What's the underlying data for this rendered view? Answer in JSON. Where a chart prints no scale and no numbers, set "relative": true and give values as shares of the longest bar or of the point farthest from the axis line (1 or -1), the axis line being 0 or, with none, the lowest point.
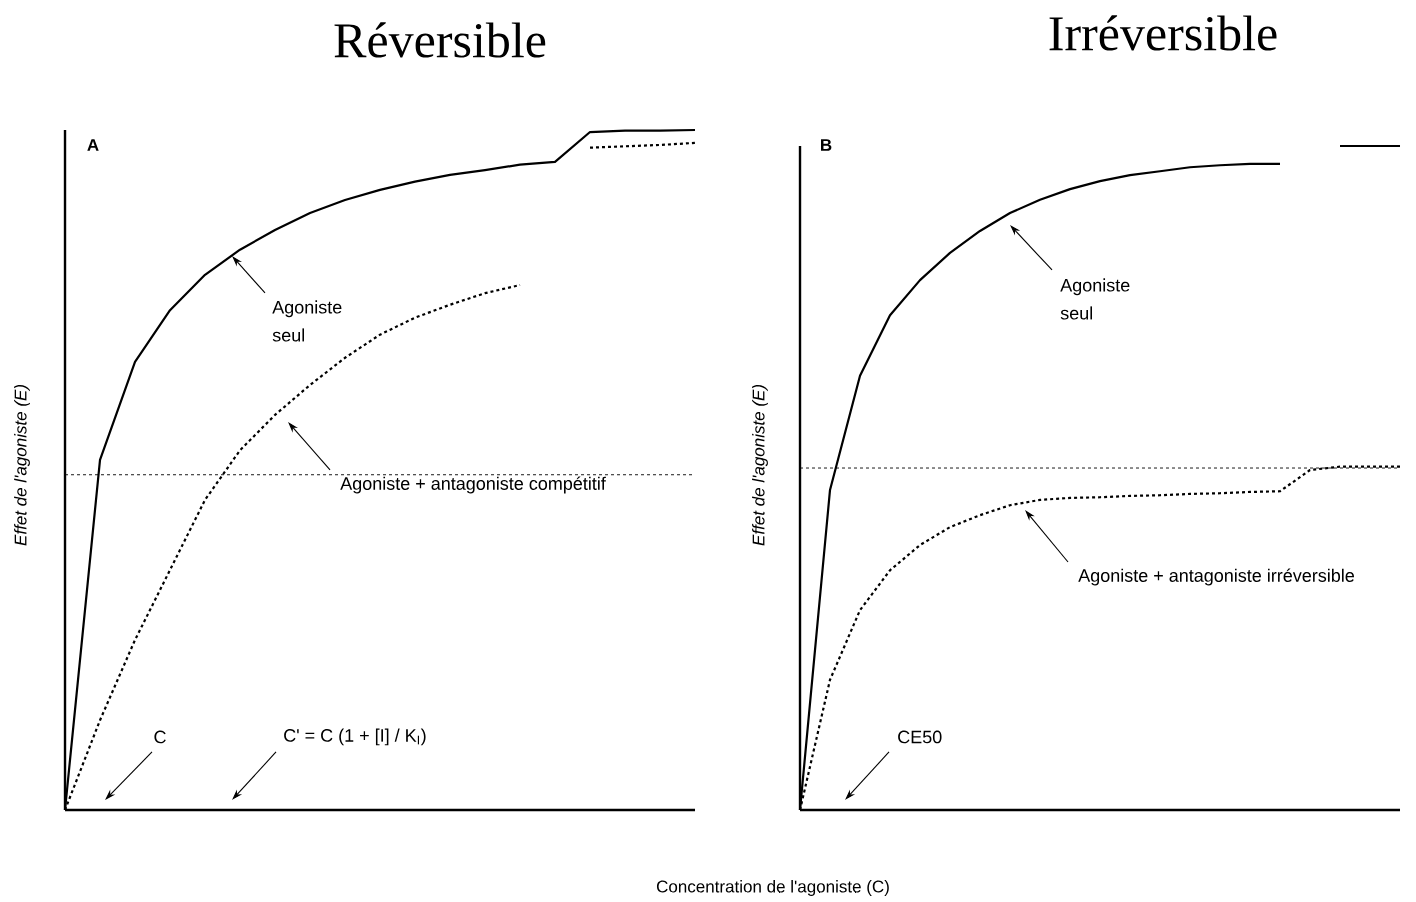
{
  "chart_data": [
    {
      "type": "line",
      "title": "Réversible",
      "ylabel": "Effet de l'agoniste (E)",
      "xlabel": "Concentration de l'agoniste (C)",
      "relative": true,
      "categories": [
        null,
        null,
        null,
        null,
        null,
        null,
        null,
        null,
        null,
        null,
        null,
        null,
        null,
        null,
        null,
        null,
        null,
        null,
        null
      ],
      "series": [
        {
          "color": "#000000",
          "line_style": "solid",
          "values": [
            0,
            0.515,
            0.659,
            0.735,
            0.787,
            0.824,
            0.853,
            0.878,
            0.897,
            0.912,
            0.924,
            0.934,
            0.941,
            0.949,
            0.953,
            0.997,
            0.999,
            0.999,
            1.0
          ]
        },
        {
          "color": "#000000",
          "line_style": "dashed",
          "values": [
            0,
            0.132,
            0.25,
            0.353,
            0.456,
            0.529,
            0.581,
            0.625,
            0.665,
            0.699,
            0.724,
            0.743,
            0.76,
            0.772,
            null,
            0.974,
            0.976,
            0.978,
            0.981
          ]
        }
      ],
      "ref_lines": [
        {
          "axis": "y",
          "value": 0.493,
          "line_style": "dashed"
        }
      ],
      "annotations": [
        "A",
        "Agoniste seul",
        "Agoniste + antagoniste compétitif",
        "C",
        "C' = C (1 + [I] / K$_{I}$)"
      ]
    },
    {
      "type": "line",
      "title": "Irréversible",
      "ylabel": "Effet de l'agoniste (E)",
      "relative": true,
      "categories": [
        null,
        null,
        null,
        null,
        null,
        null,
        null,
        null,
        null,
        null,
        null,
        null,
        null,
        null,
        null,
        null,
        null,
        null,
        null,
        null,
        null
      ],
      "series": [
        {
          "color": "#000000",
          "line_style": "solid",
          "values": [
            0,
            0.482,
            0.654,
            0.745,
            0.798,
            0.839,
            0.872,
            0.899,
            0.919,
            0.935,
            0.947,
            0.956,
            0.962,
            0.968,
            0.971,
            0.973,
            0.973,
            null,
            1.0,
            1.0,
            1.0
          ]
        },
        {
          "color": "#000000",
          "line_style": "dashed",
          "values": [
            0,
            0.196,
            0.301,
            0.361,
            0.399,
            0.426,
            0.444,
            0.459,
            0.467,
            0.47,
            0.471,
            0.473,
            0.474,
            0.476,
            0.477,
            0.479,
            0.48,
            0.512,
            0.517,
            0.517,
            0.517
          ]
        }
      ],
      "ref_lines": [
        {
          "axis": "y",
          "value": 0.515,
          "line_style": "dashed"
        }
      ],
      "annotations": [
        "B",
        "Agoniste seul",
        "Agoniste + antagoniste irréversible",
        "CE50"
      ]
    }
  ]
}
